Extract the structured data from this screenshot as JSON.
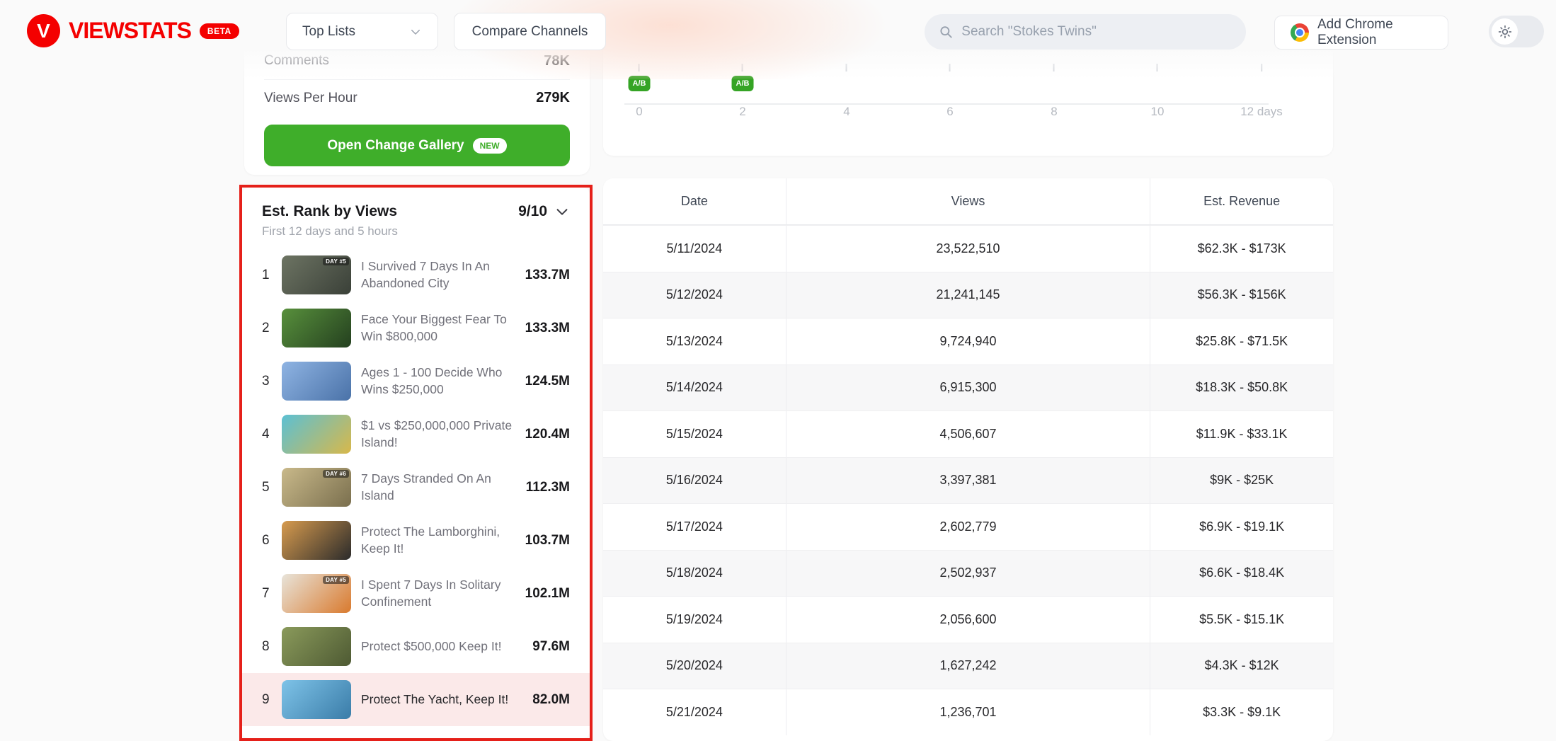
{
  "navbar": {
    "logo_text": "VIEWSTATS",
    "beta_label": "BETA",
    "top_lists_label": "Top Lists",
    "compare_channels_label": "Compare Channels",
    "search_placeholder": "Search \"Stokes Twins\"",
    "add_extension_label": "Add Chrome Extension"
  },
  "colors": {
    "brand_red": "#f40000",
    "button_green": "#3fae2a",
    "ab_badge_green": "#35a425",
    "highlight_pink": "#fbe9e9",
    "annotation_red": "#e5201a"
  },
  "stats_card": {
    "rows": [
      {
        "label": "Comments",
        "value": "78K"
      },
      {
        "label": "Views Per Hour",
        "value": "279K"
      }
    ],
    "gallery_button_label": "Open Change Gallery",
    "gallery_button_badge": "NEW"
  },
  "rank_card": {
    "title": "Est. Rank by Views",
    "rank_count": "9/10",
    "subtitle": "First 12 days and 5 hours",
    "items": [
      {
        "rank": "1",
        "title": "I Survived 7 Days In An Abandoned City",
        "views": "133.7M",
        "day_badge": "DAY #5",
        "thumb": [
          "#6d7463",
          "#3a4038"
        ]
      },
      {
        "rank": "2",
        "title": "Face Your Biggest Fear To Win $800,000",
        "views": "133.3M",
        "thumb": [
          "#58903c",
          "#24401f"
        ]
      },
      {
        "rank": "3",
        "title": "Ages 1 - 100 Decide Who Wins $250,000",
        "views": "124.5M",
        "thumb": [
          "#8fb4e3",
          "#4a72a8"
        ]
      },
      {
        "rank": "4",
        "title": "$1 vs $250,000,000 Private Island!",
        "views": "120.4M",
        "thumb": [
          "#5bc0d4",
          "#d8b84a"
        ]
      },
      {
        "rank": "5",
        "title": "7 Days Stranded On An Island",
        "views": "112.3M",
        "day_badge": "DAY #6",
        "thumb": [
          "#c9b98a",
          "#7a6f4e"
        ]
      },
      {
        "rank": "6",
        "title": "Protect The Lamborghini, Keep It!",
        "views": "103.7M",
        "thumb": [
          "#d79b4e",
          "#2b2b2b"
        ]
      },
      {
        "rank": "7",
        "title": "I Spent 7 Days In Solitary Confinement",
        "views": "102.1M",
        "day_badge": "DAY #5",
        "thumb": [
          "#e8e4da",
          "#d97a2e"
        ]
      },
      {
        "rank": "8",
        "title": "Protect $500,000 Keep It!",
        "views": "97.6M",
        "thumb": [
          "#8a9a5b",
          "#4e5a33"
        ]
      },
      {
        "rank": "9",
        "title": "Protect The Yacht, Keep It!",
        "views": "82.0M",
        "highlighted": true,
        "thumb": [
          "#7ec3e8",
          "#3a7ca8"
        ]
      }
    ]
  },
  "chart": {
    "axis_ticks": [
      {
        "label": "0",
        "pos": 51,
        "ab": true
      },
      {
        "label": "2",
        "pos": 197,
        "ab": true
      },
      {
        "label": "4",
        "pos": 344,
        "ab": false
      },
      {
        "label": "6",
        "pos": 490,
        "ab": false
      },
      {
        "label": "8",
        "pos": 637,
        "ab": false
      },
      {
        "label": "10",
        "pos": 783,
        "ab": false
      },
      {
        "label": "12 days",
        "pos": 930,
        "ab": false
      }
    ],
    "ab_badge_label": "A/B"
  },
  "table": {
    "headers": [
      "Date",
      "Views",
      "Est. Revenue"
    ],
    "rows": [
      {
        "date": "5/11/2024",
        "views": "23,522,510",
        "revenue": "$62.3K - $173K"
      },
      {
        "date": "5/12/2024",
        "views": "21,241,145",
        "revenue": "$56.3K - $156K"
      },
      {
        "date": "5/13/2024",
        "views": "9,724,940",
        "revenue": "$25.8K - $71.5K"
      },
      {
        "date": "5/14/2024",
        "views": "6,915,300",
        "revenue": "$18.3K - $50.8K"
      },
      {
        "date": "5/15/2024",
        "views": "4,506,607",
        "revenue": "$11.9K - $33.1K"
      },
      {
        "date": "5/16/2024",
        "views": "3,397,381",
        "revenue": "$9K - $25K"
      },
      {
        "date": "5/17/2024",
        "views": "2,602,779",
        "revenue": "$6.9K - $19.1K"
      },
      {
        "date": "5/18/2024",
        "views": "2,502,937",
        "revenue": "$6.6K - $18.4K"
      },
      {
        "date": "5/19/2024",
        "views": "2,056,600",
        "revenue": "$5.5K - $15.1K"
      },
      {
        "date": "5/20/2024",
        "views": "1,627,242",
        "revenue": "$4.3K - $12K"
      },
      {
        "date": "5/21/2024",
        "views": "1,236,701",
        "revenue": "$3.3K - $9.1K"
      }
    ]
  }
}
